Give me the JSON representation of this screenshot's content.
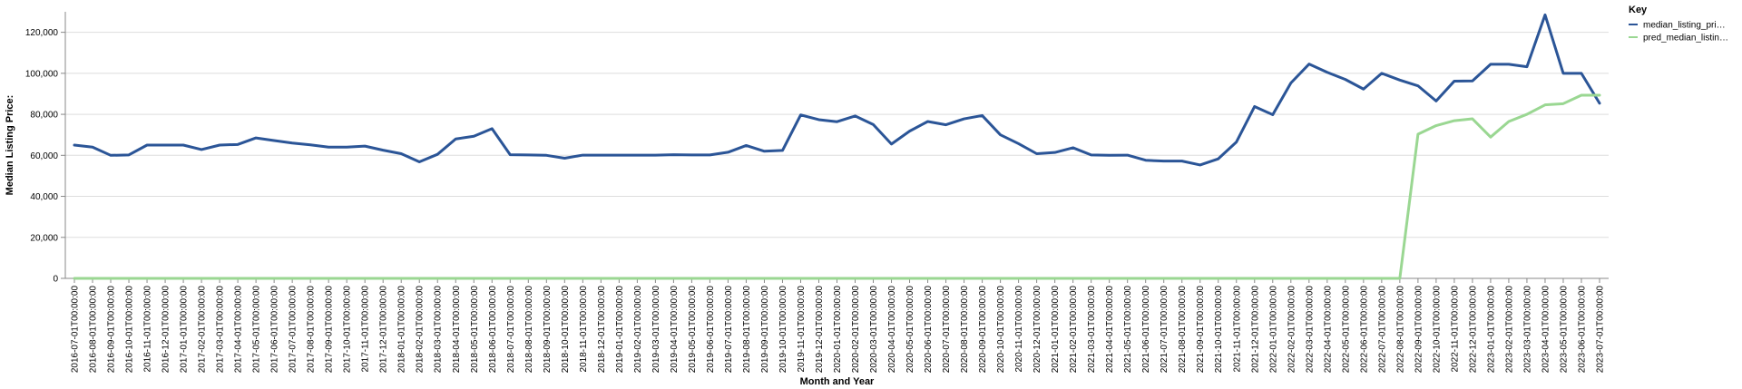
{
  "chart_data": {
    "type": "line",
    "xlabel": "Month and Year",
    "ylabel": "Median Listing Price:",
    "ylim": [
      0,
      130000
    ],
    "yticks": [
      0,
      20000,
      40000,
      60000,
      80000,
      100000,
      120000
    ],
    "ytick_labels": [
      "0",
      "20,000",
      "40,000",
      "60,000",
      "80,000",
      "100,000",
      "120,000"
    ],
    "grid": true,
    "legend": {
      "title": "Key",
      "placement": "top-right",
      "entries": [
        "median_listing_pri…",
        "pred_median_listin…"
      ]
    },
    "categories": [
      "2016-07-01T00:00:00",
      "2016-08-01T00:00:00",
      "2016-09-01T00:00:00",
      "2016-10-01T00:00:00",
      "2016-11-01T00:00:00",
      "2016-12-01T00:00:00",
      "2017-01-01T00:00:00",
      "2017-02-01T00:00:00",
      "2017-03-01T00:00:00",
      "2017-04-01T00:00:00",
      "2017-05-01T00:00:00",
      "2017-06-01T00:00:00",
      "2017-07-01T00:00:00",
      "2017-08-01T00:00:00",
      "2017-09-01T00:00:00",
      "2017-10-01T00:00:00",
      "2017-11-01T00:00:00",
      "2017-12-01T00:00:00",
      "2018-01-01T00:00:00",
      "2018-02-01T00:00:00",
      "2018-03-01T00:00:00",
      "2018-04-01T00:00:00",
      "2018-05-01T00:00:00",
      "2018-06-01T00:00:00",
      "2018-07-01T00:00:00",
      "2018-08-01T00:00:00",
      "2018-09-01T00:00:00",
      "2018-10-01T00:00:00",
      "2018-11-01T00:00:00",
      "2018-12-01T00:00:00",
      "2019-01-01T00:00:00",
      "2019-02-01T00:00:00",
      "2019-03-01T00:00:00",
      "2019-04-01T00:00:00",
      "2019-05-01T00:00:00",
      "2019-06-01T00:00:00",
      "2019-07-01T00:00:00",
      "2019-08-01T00:00:00",
      "2019-09-01T00:00:00",
      "2019-10-01T00:00:00",
      "2019-11-01T00:00:00",
      "2019-12-01T00:00:00",
      "2020-01-01T00:00:00",
      "2020-02-01T00:00:00",
      "2020-03-01T00:00:00",
      "2020-04-01T00:00:00",
      "2020-05-01T00:00:00",
      "2020-06-01T00:00:00",
      "2020-07-01T00:00:00",
      "2020-08-01T00:00:00",
      "2020-09-01T00:00:00",
      "2020-10-01T00:00:00",
      "2020-11-01T00:00:00",
      "2020-12-01T00:00:00",
      "2021-01-01T00:00:00",
      "2021-02-01T00:00:00",
      "2021-03-01T00:00:00",
      "2021-04-01T00:00:00",
      "2021-05-01T00:00:00",
      "2021-06-01T00:00:00",
      "2021-07-01T00:00:00",
      "2021-08-01T00:00:00",
      "2021-09-01T00:00:00",
      "2021-10-01T00:00:00",
      "2021-11-01T00:00:00",
      "2021-12-01T00:00:00",
      "2022-01-01T00:00:00",
      "2022-02-01T00:00:00",
      "2022-03-01T00:00:00",
      "2022-04-01T00:00:00",
      "2022-05-01T00:00:00",
      "2022-06-01T00:00:00",
      "2022-07-01T00:00:00",
      "2022-08-01T00:00:00",
      "2022-09-01T00:00:00",
      "2022-10-01T00:00:00",
      "2022-11-01T00:00:00",
      "2022-12-01T00:00:00",
      "2023-01-01T00:00:00",
      "2023-02-01T00:00:00",
      "2023-03-01T00:00:00",
      "2023-04-01T00:00:00",
      "2023-05-01T00:00:00",
      "2023-06-01T00:00:00",
      "2023-07-01T00:00:00"
    ],
    "series": [
      {
        "name": "median_listing_pri…",
        "color": "#2b5597",
        "values": [
          65000,
          64000,
          60000,
          60200,
          65000,
          65000,
          65000,
          62800,
          65000,
          65300,
          68500,
          67200,
          66000,
          65100,
          64000,
          64000,
          64500,
          62500,
          60800,
          56800,
          60500,
          68000,
          69300,
          73000,
          60300,
          60200,
          60000,
          58600,
          60100,
          60100,
          60100,
          60100,
          60100,
          60300,
          60200,
          60200,
          61500,
          64800,
          62000,
          62400,
          79700,
          77400,
          76400,
          79200,
          75000,
          65500,
          71800,
          76500,
          74900,
          77800,
          79400,
          70000,
          65700,
          60800,
          61400,
          63700,
          60200,
          60000,
          60100,
          57600,
          57200,
          57200,
          55300,
          58300,
          66500,
          83800,
          79800,
          95300,
          104500,
          100500,
          97000,
          92300,
          100000,
          96700,
          93900,
          86500,
          96200,
          96300,
          104400,
          104400,
          103200,
          128500,
          100000,
          100000,
          85400
        ]
      },
      {
        "name": "pred_median_listin…",
        "color": "#9ad792",
        "values": [
          0,
          0,
          0,
          0,
          0,
          0,
          0,
          0,
          0,
          0,
          0,
          0,
          0,
          0,
          0,
          0,
          0,
          0,
          0,
          0,
          0,
          0,
          0,
          0,
          0,
          0,
          0,
          0,
          0,
          0,
          0,
          0,
          0,
          0,
          0,
          0,
          0,
          0,
          0,
          0,
          0,
          0,
          0,
          0,
          0,
          0,
          0,
          0,
          0,
          0,
          0,
          0,
          0,
          0,
          0,
          0,
          0,
          0,
          0,
          0,
          0,
          0,
          0,
          0,
          0,
          0,
          0,
          0,
          0,
          0,
          0,
          0,
          0,
          0,
          70300,
          74500,
          76900,
          77800,
          68900,
          76500,
          80000,
          84600,
          85200,
          89300,
          89300
        ]
      }
    ]
  }
}
